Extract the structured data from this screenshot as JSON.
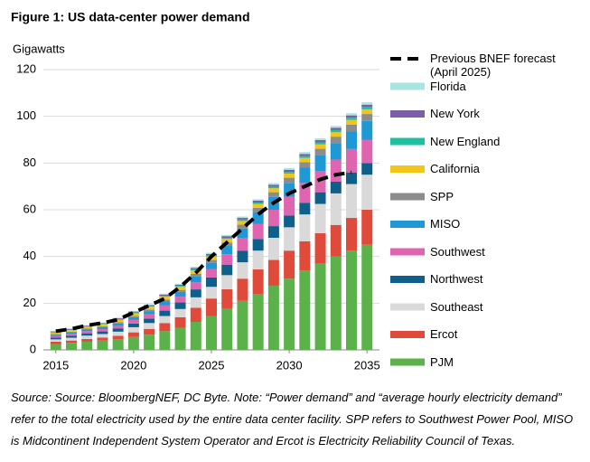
{
  "chart_data": {
    "type": "bar",
    "stacked": true,
    "title": "Figure 1:  US data-center power demand",
    "y_label": "Gigawatts",
    "x": [
      2015,
      2016,
      2017,
      2018,
      2019,
      2020,
      2021,
      2022,
      2023,
      2024,
      2025,
      2026,
      2027,
      2028,
      2029,
      2030,
      2031,
      2032,
      2033,
      2034,
      2035
    ],
    "xlim": [
      2014.2,
      2035.8
    ],
    "xticks": [
      2015,
      2020,
      2025,
      2030,
      2035
    ],
    "ylim": [
      0,
      120
    ],
    "yticks": [
      0,
      20,
      40,
      60,
      80,
      100,
      120
    ],
    "grid": true,
    "legend": "right",
    "series": [
      {
        "name": "PJM",
        "color": "#5cb24a",
        "values": [
          2.5,
          3,
          3.5,
          4,
          4.5,
          5.5,
          6.5,
          8,
          9.5,
          12,
          14.5,
          17.5,
          21,
          24,
          27.5,
          30.5,
          34,
          37,
          40,
          42.5,
          45
        ]
      },
      {
        "name": "Ercot",
        "color": "#e04a3a",
        "values": [
          1,
          1,
          1.2,
          1.3,
          1.5,
          2,
          2.5,
          3.5,
          4.5,
          6,
          7.5,
          8.5,
          9.5,
          10.5,
          11,
          12,
          12.5,
          13,
          13.5,
          14,
          15
        ]
      },
      {
        "name": "Southeast",
        "color": "#d9d9d9",
        "values": [
          1,
          1.2,
          1.4,
          1.5,
          1.8,
          2.2,
          2.5,
          3,
          3.5,
          4.5,
          5,
          6,
          7,
          8,
          9.5,
          10,
          11.5,
          12.5,
          13.5,
          14.5,
          15
        ]
      },
      {
        "name": "Northwest",
        "color": "#0e5f8a",
        "values": [
          0.8,
          0.9,
          1,
          1.1,
          1.3,
          1.6,
          1.9,
          2.3,
          2.8,
          3.4,
          4,
          4.5,
          5,
          5,
          5,
          5,
          5,
          5,
          5,
          5,
          5
        ]
      },
      {
        "name": "Southwest",
        "color": "#e065b0",
        "values": [
          0.7,
          0.8,
          0.9,
          1,
          1.2,
          1.5,
          1.8,
          2.2,
          2.5,
          3,
          3.5,
          4.5,
          5.5,
          6.5,
          7,
          8,
          8.5,
          9,
          9.5,
          10,
          10
        ]
      },
      {
        "name": "MISO",
        "color": "#1f98d6",
        "values": [
          0.5,
          0.6,
          0.7,
          0.8,
          1,
          1.2,
          1.4,
          1.7,
          2,
          2.6,
          2.8,
          3.5,
          4,
          5,
          5.5,
          6,
          6.5,
          7,
          7,
          7.5,
          8
        ]
      },
      {
        "name": "SPP",
        "color": "#8c8c8c",
        "values": [
          0.3,
          0.3,
          0.4,
          0.4,
          0.5,
          0.6,
          0.7,
          0.8,
          0.9,
          1.1,
          1.2,
          1.4,
          1.6,
          1.8,
          2,
          2.2,
          2.4,
          2.6,
          2.8,
          3,
          3
        ]
      },
      {
        "name": "California",
        "color": "#f2c618",
        "values": [
          0.6,
          0.7,
          0.8,
          0.9,
          1,
          1.1,
          1.2,
          1.3,
          1.3,
          1.4,
          1.5,
          1.6,
          1.6,
          1.7,
          1.7,
          1.8,
          1.8,
          1.9,
          1.9,
          2,
          2
        ]
      },
      {
        "name": "New England",
        "color": "#1fc0a0",
        "values": [
          0.2,
          0.2,
          0.2,
          0.2,
          0.3,
          0.3,
          0.3,
          0.4,
          0.4,
          0.5,
          0.5,
          0.5,
          0.6,
          0.6,
          0.7,
          0.7,
          0.8,
          0.8,
          0.9,
          0.9,
          1
        ]
      },
      {
        "name": "New York",
        "color": "#7b5ea7",
        "values": [
          0.3,
          0.3,
          0.3,
          0.3,
          0.4,
          0.4,
          0.4,
          0.5,
          0.5,
          0.6,
          0.6,
          0.7,
          0.7,
          0.8,
          0.8,
          0.9,
          0.9,
          1,
          1,
          1,
          1
        ]
      },
      {
        "name": "Florida",
        "color": "#a8e4e0",
        "values": [
          0.2,
          0.2,
          0.2,
          0.2,
          0.3,
          0.3,
          0.3,
          0.4,
          0.4,
          0.5,
          0.5,
          0.5,
          0.6,
          0.6,
          0.7,
          0.7,
          0.8,
          0.8,
          0.8,
          0.9,
          1
        ]
      },
      {
        "name": "Previous BNEF forecast (April 2025)",
        "type": "line",
        "dashed": true,
        "color": "#000000",
        "values": [
          8,
          9,
          10.5,
          11.5,
          13,
          16,
          19,
          22,
          27,
          33,
          40,
          46,
          52,
          58,
          63,
          67,
          70,
          73,
          75,
          76,
          null
        ]
      }
    ],
    "note": "Source: Source: BloombergNEF, DC Byte. Note: “Power demand” and “average hourly electricity demand” refer to the total electricity used by the entire data center facility. SPP refers to Southwest Power Pool, MISO is Midcontinent Independent System Operator and Ercot is Electricity Reliability Council of Texas."
  }
}
